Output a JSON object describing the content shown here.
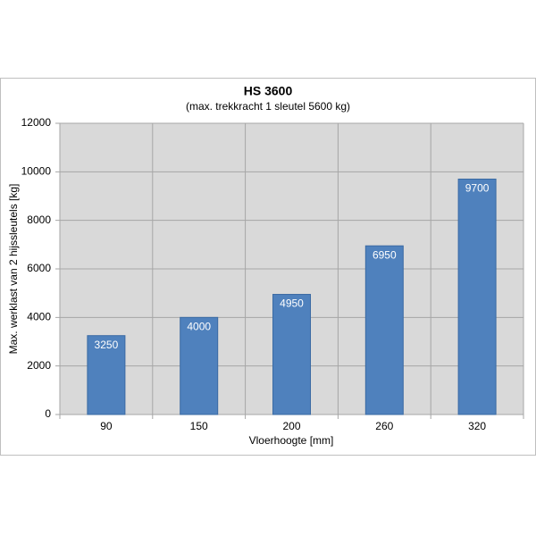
{
  "chart_data": {
    "type": "bar",
    "title": "HS 3600",
    "subtitle": "(max. trekkracht 1 sleutel 5600 kg)",
    "x_label": "Vloerhoogte [mm]",
    "y_label": "Max. werklast van 2 hijssleutels [kg]",
    "categories": [
      "90",
      "150",
      "200",
      "260",
      "320"
    ],
    "values": [
      3250,
      4000,
      4950,
      6950,
      9700
    ],
    "color": "#4f81bd",
    "ylim": [
      0,
      12000
    ],
    "yticks": [
      0,
      2000,
      4000,
      6000,
      8000,
      10000,
      12000
    ],
    "grid": true
  }
}
